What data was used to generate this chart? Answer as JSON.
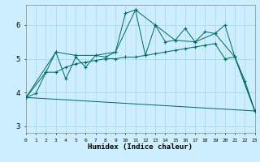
{
  "xlabel": "Humidex (Indice chaleur)",
  "bg_color": "#cceeff",
  "grid_color": "#aadddd",
  "line_color": "#006666",
  "xlim": [
    0,
    23
  ],
  "ylim": [
    2.8,
    6.6
  ],
  "xtick_labels": [
    "0",
    "1",
    "2",
    "3",
    "4",
    "5",
    "6",
    "7",
    "8",
    "9",
    "10",
    "11",
    "12",
    "13",
    "14",
    "15",
    "16",
    "17",
    "18",
    "19",
    "20",
    "21",
    "22",
    "23"
  ],
  "yticks": [
    3,
    4,
    5,
    6
  ],
  "series1": [
    [
      0,
      3.85
    ],
    [
      1,
      3.97
    ],
    [
      2,
      4.6
    ],
    [
      3,
      5.2
    ],
    [
      4,
      4.4
    ],
    [
      5,
      5.05
    ],
    [
      6,
      4.75
    ],
    [
      7,
      5.1
    ],
    [
      8,
      5.05
    ],
    [
      9,
      5.2
    ],
    [
      10,
      6.35
    ],
    [
      11,
      6.45
    ],
    [
      12,
      5.1
    ],
    [
      13,
      6.0
    ],
    [
      14,
      5.5
    ],
    [
      15,
      5.55
    ],
    [
      16,
      5.9
    ],
    [
      17,
      5.5
    ],
    [
      18,
      5.8
    ],
    [
      19,
      5.75
    ],
    [
      20,
      6.0
    ],
    [
      21,
      5.05
    ],
    [
      22,
      4.35
    ],
    [
      23,
      3.45
    ]
  ],
  "series2": [
    [
      0,
      3.85
    ],
    [
      2,
      4.6
    ],
    [
      3,
      4.6
    ],
    [
      4,
      4.75
    ],
    [
      5,
      4.85
    ],
    [
      6,
      4.9
    ],
    [
      7,
      4.95
    ],
    [
      8,
      5.0
    ],
    [
      9,
      5.0
    ],
    [
      10,
      5.05
    ],
    [
      11,
      5.05
    ],
    [
      12,
      5.1
    ],
    [
      13,
      5.15
    ],
    [
      14,
      5.2
    ],
    [
      15,
      5.25
    ],
    [
      16,
      5.3
    ],
    [
      17,
      5.35
    ],
    [
      18,
      5.4
    ],
    [
      19,
      5.45
    ],
    [
      20,
      5.0
    ],
    [
      21,
      5.05
    ],
    [
      23,
      3.45
    ]
  ],
  "series3": [
    [
      0,
      3.85
    ],
    [
      3,
      5.2
    ],
    [
      5,
      5.1
    ],
    [
      7,
      5.1
    ],
    [
      9,
      5.2
    ],
    [
      11,
      6.45
    ],
    [
      13,
      6.0
    ],
    [
      15,
      5.55
    ],
    [
      17,
      5.5
    ],
    [
      19,
      5.75
    ],
    [
      21,
      5.05
    ],
    [
      23,
      3.45
    ]
  ],
  "series4": [
    [
      0,
      3.85
    ],
    [
      23,
      3.45
    ]
  ]
}
